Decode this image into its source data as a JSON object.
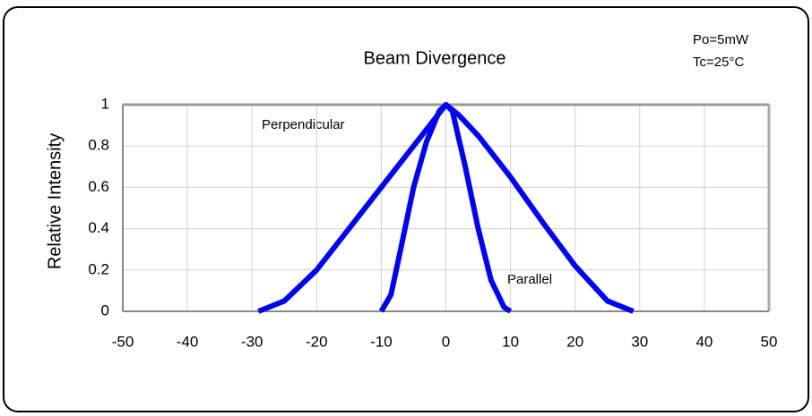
{
  "chart_data": {
    "type": "line",
    "title": "Beam Divergence",
    "ylabel": "Relative Intensity",
    "annotations": [
      "Po=5mW",
      "Tc=25°C",
      "Perpendicular",
      "Parallel"
    ],
    "xlim": [
      -50,
      50
    ],
    "xticks": [
      -50,
      -40,
      -30,
      -20,
      -10,
      0,
      10,
      20,
      30,
      40,
      50
    ],
    "ylim": [
      0,
      1
    ],
    "yticks": [
      0,
      0.2,
      0.4,
      0.6,
      0.8,
      1
    ],
    "grid": true,
    "series": [
      {
        "name": "Perpendicular",
        "color": "#0000ff",
        "x": [
          -29,
          -25,
          -20,
          -15,
          -10,
          -5,
          -2,
          0,
          2,
          5,
          10,
          15,
          20,
          25,
          29
        ],
        "values": [
          0,
          0.05,
          0.2,
          0.4,
          0.6,
          0.8,
          0.92,
          1,
          0.95,
          0.85,
          0.65,
          0.43,
          0.22,
          0.05,
          0
        ]
      },
      {
        "name": "Parallel",
        "color": "#0000ff",
        "x": [
          -10,
          -8.5,
          -7,
          -5,
          -3,
          -1,
          0,
          1,
          3,
          5,
          7,
          9,
          10
        ],
        "values": [
          0,
          0.08,
          0.3,
          0.6,
          0.82,
          0.97,
          1,
          0.97,
          0.7,
          0.4,
          0.15,
          0.02,
          0
        ]
      }
    ]
  }
}
